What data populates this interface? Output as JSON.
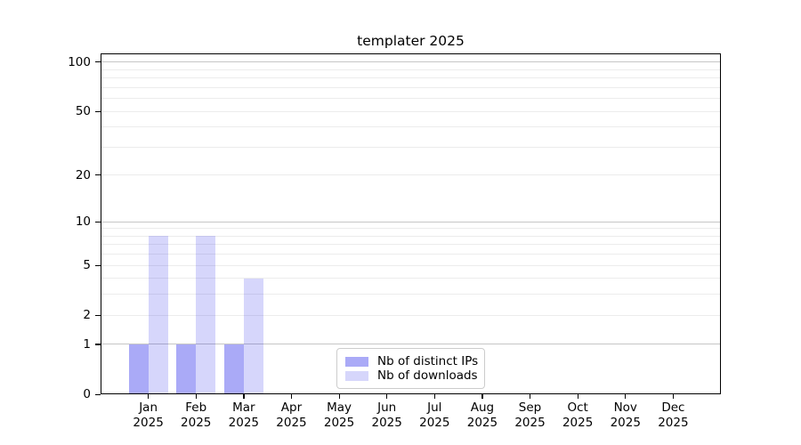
{
  "chart_data": {
    "type": "bar",
    "title": "templater 2025",
    "categories": [
      "Jan",
      "Feb",
      "Mar",
      "Apr",
      "May",
      "Jun",
      "Jul",
      "Aug",
      "Sep",
      "Oct",
      "Nov",
      "Dec"
    ],
    "x_sublabel": "2025",
    "series": [
      {
        "name": "Nb of distinct IPs",
        "color": "#0000e655",
        "values": [
          1,
          1,
          1,
          0,
          0,
          0,
          0,
          0,
          0,
          0,
          0,
          0
        ]
      },
      {
        "name": "Nb of downloads",
        "color": "#0000e629",
        "values": [
          8,
          8,
          4,
          0,
          0,
          0,
          0,
          0,
          0,
          0,
          0,
          0
        ]
      }
    ],
    "yscale": "log1p",
    "ylim": [
      0,
      113
    ],
    "yticks": [
      0,
      1,
      2,
      5,
      10,
      20,
      50,
      100
    ],
    "major_gridlines": [
      1,
      10,
      100
    ],
    "minor_gridlines": [
      2,
      3,
      4,
      5,
      6,
      7,
      8,
      9,
      20,
      30,
      40,
      50,
      60,
      70,
      80,
      90
    ],
    "grid": true,
    "legend_position": "lower center"
  },
  "colors": {
    "background": "#ffffff",
    "spine": "#000000",
    "text": "#000000",
    "major_grid": "#c6c6c6",
    "minor_grid": "#ececec",
    "legend_border": "#cccccc",
    "bar_distinct_ips": "#a9a9f7",
    "bar_downloads": "#d9d9fb"
  }
}
